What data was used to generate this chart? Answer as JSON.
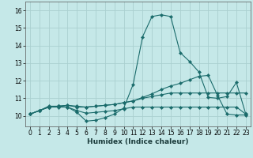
{
  "xlabel": "Humidex (Indice chaleur)",
  "xlim": [
    -0.5,
    23.5
  ],
  "ylim": [
    9.4,
    16.5
  ],
  "xticks": [
    0,
    1,
    2,
    3,
    4,
    5,
    6,
    7,
    8,
    9,
    10,
    11,
    12,
    13,
    14,
    15,
    16,
    17,
    18,
    19,
    20,
    21,
    22,
    23
  ],
  "yticks": [
    10,
    11,
    12,
    13,
    14,
    15,
    16
  ],
  "bg_color": "#c5e8e8",
  "grid_color": "#aad0d0",
  "line_color": "#1a6b6b",
  "line1_y": [
    10.1,
    10.3,
    10.5,
    10.5,
    10.5,
    10.2,
    9.7,
    9.75,
    9.9,
    10.1,
    10.45,
    11.8,
    14.5,
    15.65,
    15.75,
    15.65,
    13.6,
    13.1,
    12.5,
    11.05,
    11.0,
    11.1,
    11.9,
    10.1
  ],
  "line2_y": [
    10.1,
    10.3,
    10.5,
    10.55,
    10.6,
    10.55,
    10.5,
    10.55,
    10.6,
    10.65,
    10.75,
    10.85,
    11.05,
    11.25,
    11.5,
    11.7,
    11.85,
    12.05,
    12.25,
    12.3,
    11.15,
    10.1,
    10.05,
    10.05
  ],
  "line3_y": [
    10.1,
    10.3,
    10.55,
    10.55,
    10.6,
    10.5,
    10.5,
    10.55,
    10.6,
    10.65,
    10.75,
    10.85,
    11.0,
    11.1,
    11.2,
    11.3,
    11.3,
    11.3,
    11.3,
    11.3,
    11.3,
    11.3,
    11.3,
    11.3
  ],
  "line4_y": [
    10.1,
    10.3,
    10.5,
    10.55,
    10.5,
    10.3,
    10.15,
    10.2,
    10.25,
    10.3,
    10.4,
    10.5,
    10.5,
    10.5,
    10.5,
    10.5,
    10.5,
    10.5,
    10.5,
    10.5,
    10.5,
    10.5,
    10.5,
    10.1
  ]
}
